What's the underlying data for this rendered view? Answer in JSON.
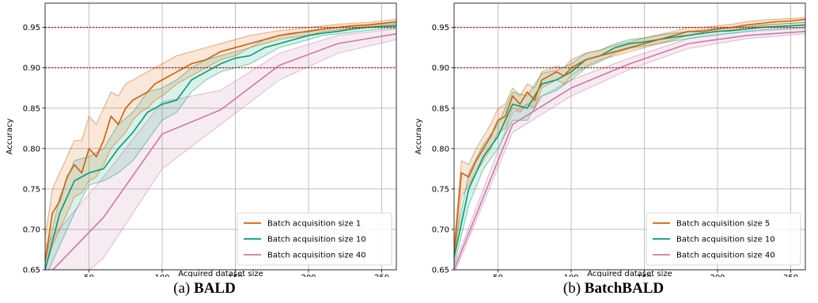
{
  "panels": [
    {
      "caption_prefix": "(a)",
      "caption_name": "BALD",
      "chart_data": {
        "type": "line",
        "xlabel": "Acquired dataset size",
        "ylabel": "Accuracy",
        "xlim": [
          20,
          260
        ],
        "ylim": [
          0.65,
          0.98
        ],
        "xticks": [
          50,
          100,
          150,
          200,
          250
        ],
        "yticks": [
          0.65,
          0.7,
          0.75,
          0.8,
          0.85,
          0.9,
          0.95
        ],
        "hlines": [
          0.9,
          0.95
        ],
        "hline_color": "#cc0000",
        "grid": true,
        "legend_position": "lower-right",
        "series": [
          {
            "name": "Batch acquisition size 1",
            "color": "#d55e00",
            "x": [
              20,
              25,
              30,
              35,
              40,
              45,
              50,
              55,
              60,
              65,
              70,
              75,
              80,
              85,
              90,
              95,
              100,
              110,
              120,
              130,
              140,
              150,
              160,
              170,
              180,
              190,
              200,
              210,
              220,
              230,
              240,
              250,
              260
            ],
            "mean": [
              0.66,
              0.72,
              0.735,
              0.765,
              0.78,
              0.77,
              0.8,
              0.79,
              0.81,
              0.84,
              0.83,
              0.85,
              0.86,
              0.865,
              0.87,
              0.88,
              0.885,
              0.895,
              0.905,
              0.91,
              0.92,
              0.925,
              0.93,
              0.935,
              0.94,
              0.943,
              0.945,
              0.948,
              0.95,
              0.952,
              0.953,
              0.955,
              0.957
            ],
            "lower": [
              0.65,
              0.68,
              0.7,
              0.72,
              0.74,
              0.745,
              0.76,
              0.765,
              0.78,
              0.8,
              0.81,
              0.82,
              0.835,
              0.845,
              0.85,
              0.86,
              0.865,
              0.88,
              0.89,
              0.9,
              0.91,
              0.915,
              0.925,
              0.93,
              0.935,
              0.938,
              0.94,
              0.945,
              0.947,
              0.949,
              0.951,
              0.952,
              0.953
            ],
            "upper": [
              0.69,
              0.75,
              0.77,
              0.79,
              0.81,
              0.81,
              0.84,
              0.83,
              0.85,
              0.87,
              0.865,
              0.88,
              0.885,
              0.89,
              0.895,
              0.9,
              0.905,
              0.915,
              0.92,
              0.925,
              0.93,
              0.935,
              0.94,
              0.943,
              0.946,
              0.948,
              0.95,
              0.952,
              0.954,
              0.955,
              0.956,
              0.958,
              0.96
            ]
          },
          {
            "name": "Batch acquisition size 10",
            "color": "#009e73",
            "x": [
              20,
              30,
              40,
              50,
              60,
              70,
              80,
              90,
              100,
              110,
              120,
              130,
              140,
              150,
              160,
              170,
              180,
              190,
              200,
              210,
              220,
              230,
              240,
              250,
              260
            ],
            "mean": [
              0.65,
              0.72,
              0.76,
              0.77,
              0.775,
              0.8,
              0.82,
              0.845,
              0.855,
              0.86,
              0.885,
              0.895,
              0.905,
              0.912,
              0.915,
              0.925,
              0.93,
              0.935,
              0.94,
              0.943,
              0.945,
              0.948,
              0.95,
              0.951,
              0.952
            ],
            "lower": [
              0.64,
              0.68,
              0.72,
              0.755,
              0.76,
              0.77,
              0.785,
              0.81,
              0.835,
              0.845,
              0.87,
              0.885,
              0.895,
              0.9,
              0.905,
              0.915,
              0.925,
              0.93,
              0.935,
              0.94,
              0.942,
              0.944,
              0.946,
              0.948,
              0.949
            ],
            "upper": [
              0.66,
              0.74,
              0.785,
              0.79,
              0.8,
              0.83,
              0.845,
              0.87,
              0.875,
              0.885,
              0.9,
              0.91,
              0.915,
              0.92,
              0.925,
              0.935,
              0.94,
              0.942,
              0.946,
              0.948,
              0.95,
              0.952,
              0.953,
              0.954,
              0.955
            ]
          },
          {
            "name": "Batch acquisition size 40",
            "color": "#cc79a7",
            "x": [
              20,
              60,
              100,
              140,
              180,
              220,
              260
            ],
            "mean": [
              0.64,
              0.715,
              0.818,
              0.848,
              0.903,
              0.93,
              0.942
            ],
            "lower": [
              0.6,
              0.665,
              0.775,
              0.83,
              0.885,
              0.918,
              0.935
            ],
            "upper": [
              0.68,
              0.765,
              0.858,
              0.872,
              0.918,
              0.94,
              0.948
            ]
          }
        ]
      }
    },
    {
      "caption_prefix": "(b)",
      "caption_name": "BatchBALD",
      "chart_data": {
        "type": "line",
        "xlabel": "Acquired dataset size",
        "ylabel": "Accuracy",
        "xlim": [
          20,
          260
        ],
        "ylim": [
          0.65,
          0.98
        ],
        "xticks": [
          50,
          100,
          150,
          200,
          250
        ],
        "yticks": [
          0.65,
          0.7,
          0.75,
          0.8,
          0.85,
          0.9,
          0.95
        ],
        "hlines": [
          0.9,
          0.95
        ],
        "hline_color": "#cc0000",
        "grid": true,
        "legend_position": "lower-right",
        "series": [
          {
            "name": "Batch acquisition size 5",
            "color": "#d55e00",
            "x": [
              20,
              25,
              30,
              35,
              40,
              45,
              50,
              55,
              60,
              65,
              70,
              75,
              80,
              85,
              90,
              95,
              100,
              110,
              120,
              130,
              140,
              150,
              160,
              170,
              180,
              190,
              200,
              210,
              220,
              230,
              240,
              250,
              260
            ],
            "mean": [
              0.67,
              0.77,
              0.765,
              0.785,
              0.8,
              0.815,
              0.835,
              0.84,
              0.865,
              0.855,
              0.87,
              0.86,
              0.885,
              0.89,
              0.895,
              0.89,
              0.9,
              0.91,
              0.915,
              0.92,
              0.925,
              0.93,
              0.935,
              0.94,
              0.945,
              0.945,
              0.948,
              0.95,
              0.953,
              0.955,
              0.957,
              0.958,
              0.96
            ],
            "lower": [
              0.66,
              0.74,
              0.755,
              0.77,
              0.785,
              0.8,
              0.82,
              0.825,
              0.85,
              0.845,
              0.855,
              0.85,
              0.875,
              0.88,
              0.885,
              0.88,
              0.89,
              0.902,
              0.91,
              0.915,
              0.92,
              0.925,
              0.93,
              0.935,
              0.94,
              0.942,
              0.945,
              0.947,
              0.95,
              0.952,
              0.954,
              0.955,
              0.956
            ],
            "upper": [
              0.68,
              0.785,
              0.78,
              0.8,
              0.815,
              0.83,
              0.85,
              0.855,
              0.875,
              0.865,
              0.88,
              0.875,
              0.895,
              0.898,
              0.902,
              0.9,
              0.91,
              0.918,
              0.922,
              0.928,
              0.932,
              0.937,
              0.941,
              0.945,
              0.95,
              0.95,
              0.952,
              0.954,
              0.957,
              0.959,
              0.96,
              0.961,
              0.962
            ]
          },
          {
            "name": "Batch acquisition size 10",
            "color": "#009e73",
            "x": [
              20,
              30,
              40,
              50,
              60,
              70,
              80,
              90,
              100,
              110,
              120,
              130,
              140,
              150,
              160,
              170,
              180,
              190,
              200,
              210,
              220,
              230,
              240,
              250,
              260
            ],
            "mean": [
              0.665,
              0.75,
              0.79,
              0.815,
              0.855,
              0.85,
              0.88,
              0.885,
              0.895,
              0.91,
              0.915,
              0.925,
              0.93,
              0.932,
              0.935,
              0.938,
              0.94,
              0.943,
              0.945,
              0.946,
              0.948,
              0.95,
              0.951,
              0.952,
              0.953
            ],
            "lower": [
              0.655,
              0.73,
              0.775,
              0.8,
              0.835,
              0.835,
              0.865,
              0.872,
              0.885,
              0.9,
              0.908,
              0.918,
              0.924,
              0.927,
              0.93,
              0.933,
              0.936,
              0.939,
              0.941,
              0.943,
              0.945,
              0.947,
              0.948,
              0.949,
              0.95
            ],
            "upper": [
              0.675,
              0.77,
              0.805,
              0.83,
              0.87,
              0.865,
              0.893,
              0.897,
              0.905,
              0.918,
              0.922,
              0.93,
              0.935,
              0.937,
              0.94,
              0.943,
              0.945,
              0.947,
              0.949,
              0.95,
              0.951,
              0.953,
              0.954,
              0.955,
              0.956
            ]
          },
          {
            "name": "Batch acquisition size 40",
            "color": "#cc79a7",
            "x": [
              20,
              60,
              100,
              140,
              180,
              220,
              260
            ],
            "mean": [
              0.65,
              0.83,
              0.875,
              0.905,
              0.93,
              0.94,
              0.945
            ],
            "lower": [
              0.645,
              0.82,
              0.865,
              0.898,
              0.924,
              0.936,
              0.942
            ],
            "upper": [
              0.655,
              0.845,
              0.885,
              0.912,
              0.936,
              0.945,
              0.949
            ]
          }
        ]
      }
    }
  ]
}
